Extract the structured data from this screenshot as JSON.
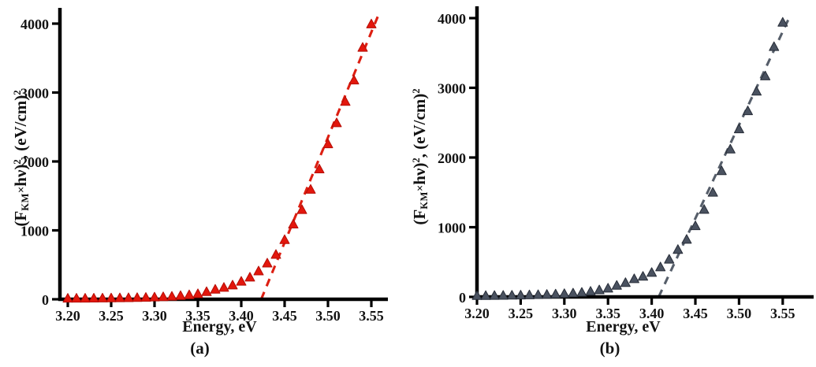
{
  "figure": {
    "xlabel": "Energy, eV",
    "ylabel_parts": {
      "p1": "(F",
      "sub": "KM",
      "times": "×",
      "p2": "hν)",
      "sup1": "2",
      "p3": ", (eV/cm)",
      "sup2": "2"
    },
    "captions": {
      "a": "(a)",
      "b": "(b)"
    }
  },
  "chart_data": [
    {
      "id": "a",
      "type": "scatter",
      "title": "",
      "caption": "(a)",
      "xlabel": "Energy, eV",
      "ylabel": "(F_KM × hν)^2, (eV/cm)^2",
      "marker": "triangle-up",
      "marker_color": "#e3170d",
      "marker_edge_color": "#b50d05",
      "trendline_style": "dashed",
      "trendline_color": "#dd1f12",
      "axis_color": "#000000",
      "grid": false,
      "legend": "none",
      "xlim": [
        3.19,
        3.57
      ],
      "ylim": [
        0,
        4200
      ],
      "xticks": [
        "3.20",
        "3.25",
        "3.30",
        "3.35",
        "3.40",
        "3.45",
        "3.50",
        "3.55"
      ],
      "yticks": [
        "0",
        "1000",
        "2000",
        "3000",
        "4000"
      ],
      "x": [
        3.2,
        3.21,
        3.22,
        3.23,
        3.24,
        3.25,
        3.26,
        3.27,
        3.28,
        3.29,
        3.3,
        3.31,
        3.32,
        3.33,
        3.34,
        3.35,
        3.36,
        3.37,
        3.38,
        3.39,
        3.4,
        3.41,
        3.42,
        3.43,
        3.44,
        3.45,
        3.46,
        3.47,
        3.48,
        3.49,
        3.5,
        3.51,
        3.52,
        3.53,
        3.54,
        3.55
      ],
      "y": [
        4,
        5,
        5,
        6,
        7,
        8,
        10,
        12,
        14,
        17,
        21,
        26,
        33,
        43,
        55,
        70,
        100,
        135,
        162,
        196,
        250,
        310,
        400,
        515,
        640,
        855,
        1080,
        1290,
        1585,
        1880,
        2245,
        2550,
        2860,
        3170,
        3645,
        3985
      ],
      "trendline": {
        "x1": 3.423,
        "y1": 0,
        "x2": 3.558,
        "y2": 4120
      }
    },
    {
      "id": "b",
      "type": "scatter",
      "title": "",
      "caption": "(b)",
      "xlabel": "Energy, eV",
      "ylabel": "(F_KM × hν)^2, (eV/cm)^2",
      "marker": "triangle-up",
      "marker_color": "#4a5260",
      "marker_edge_color": "#272d38",
      "trendline_style": "dashed",
      "trendline_color": "#565e6a",
      "axis_color": "#000000",
      "grid": false,
      "legend": "none",
      "xlim": [
        3.19,
        3.57
      ],
      "ylim": [
        0,
        4200
      ],
      "xticks": [
        "3.20",
        "3.25",
        "3.30",
        "3.35",
        "3.40",
        "3.45",
        "3.50",
        "3.55"
      ],
      "yticks": [
        "0",
        "1000",
        "2000",
        "3000",
        "4000"
      ],
      "x": [
        3.2,
        3.21,
        3.22,
        3.23,
        3.24,
        3.25,
        3.26,
        3.27,
        3.28,
        3.29,
        3.3,
        3.31,
        3.32,
        3.33,
        3.34,
        3.35,
        3.36,
        3.37,
        3.38,
        3.39,
        3.4,
        3.41,
        3.42,
        3.43,
        3.44,
        3.45,
        3.46,
        3.47,
        3.48,
        3.49,
        3.5,
        3.51,
        3.52,
        3.53,
        3.54,
        3.55
      ],
      "y": [
        8,
        9,
        10,
        12,
        14,
        16,
        19,
        22,
        26,
        31,
        37,
        45,
        55,
        70,
        90,
        115,
        155,
        195,
        250,
        285,
        340,
        420,
        530,
        670,
        815,
        1010,
        1245,
        1490,
        1800,
        2110,
        2400,
        2660,
        2940,
        3160,
        3580,
        3930
      ],
      "trendline": {
        "x1": 3.408,
        "y1": 0,
        "x2": 3.557,
        "y2": 3995
      }
    }
  ]
}
